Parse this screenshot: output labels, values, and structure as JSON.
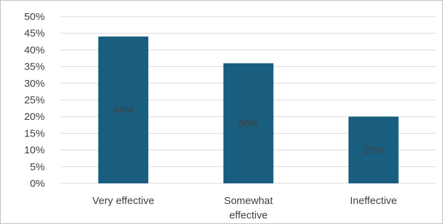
{
  "chart_data": {
    "type": "bar",
    "categories": [
      [
        "Very effective"
      ],
      [
        "Somewhat",
        "effective"
      ],
      [
        "Ineffective"
      ]
    ],
    "values": [
      44,
      36,
      20
    ],
    "data_labels": [
      "44%",
      "36%",
      "20%"
    ],
    "title": "",
    "xlabel": "",
    "ylabel": "",
    "ylim": [
      0,
      50
    ],
    "y_ticks": [
      "0%",
      "5%",
      "10%",
      "15%",
      "20%",
      "25%",
      "30%",
      "35%",
      "40%",
      "45%",
      "50%"
    ],
    "grid": true,
    "legend": "none",
    "bar_color": "#195e7f",
    "grid_color": "#d9d9d9",
    "text_color": "#404040"
  }
}
